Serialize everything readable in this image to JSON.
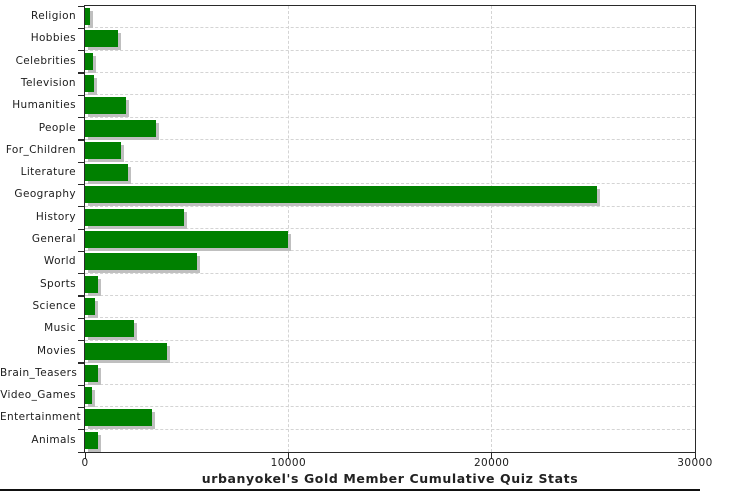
{
  "chart_data": {
    "type": "bar",
    "orientation": "horizontal",
    "title": "urbanyokel's Gold Member Cumulative Quiz Stats",
    "categories": [
      "Religion",
      "Hobbies",
      "Celebrities",
      "Television",
      "Humanities",
      "People",
      "For_Children",
      "Literature",
      "Geography",
      "History",
      "General",
      "World",
      "Sports",
      "Science",
      "Music",
      "Movies",
      "Brain_Teasers",
      "Video_Games",
      "Entertainment",
      "Animals"
    ],
    "values": [
      250,
      1600,
      370,
      420,
      2000,
      3470,
      1750,
      2100,
      25200,
      4850,
      10000,
      5500,
      650,
      490,
      2390,
      4050,
      660,
      360,
      3300,
      650
    ],
    "xlabel": "",
    "ylabel": "",
    "xlim": [
      0,
      30000
    ],
    "x_ticks": [
      0,
      10000,
      20000,
      30000
    ],
    "x_tick_labels": [
      "0",
      "10000",
      "20000",
      "30000"
    ],
    "grid": "dashed, horizontal at row boundaries and vertical at 10000/20000",
    "legend": "none",
    "colors": {
      "bar": "#008000",
      "bar_shadow": "#bfbfbf",
      "gridline": "#d4d4d4",
      "axis": "#2a2a2a",
      "text": "#1c1c1c",
      "background": "#ffffff",
      "bottom_rule": "#111111"
    }
  }
}
